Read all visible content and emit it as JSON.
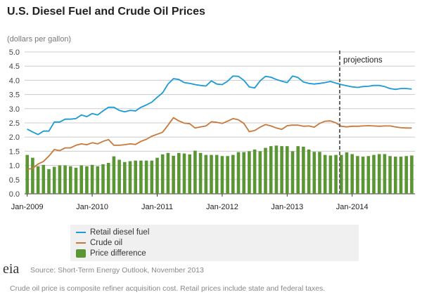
{
  "chart_data": {
    "type": "bar+line",
    "title": "U.S. Diesel Fuel and Crude Oil Prices",
    "ylabel": "(dollars per gallon)",
    "xlabel": "",
    "ylim": [
      0,
      5
    ],
    "yticks": [
      "0.0",
      "0.5",
      "1.0",
      "1.5",
      "2.0",
      "2.5",
      "3.0",
      "3.5",
      "4.0",
      "4.5",
      "5.0"
    ],
    "x_start": "Jan-2009",
    "x_end": "Dec-2014",
    "frequency": "monthly",
    "xticks": [
      "Jan-2009",
      "Jan-2010",
      "Jan-2011",
      "Jan-2012",
      "Jan-2013",
      "Jan-2014"
    ],
    "grid": true,
    "legend_position": "bottom",
    "annotation": {
      "label": "projections",
      "at": "Nov-2013"
    },
    "series": [
      {
        "name": "Retail diesel fuel",
        "type": "line",
        "color": "#1a9ad6",
        "values": [
          2.28,
          2.18,
          2.09,
          2.21,
          2.21,
          2.53,
          2.53,
          2.63,
          2.63,
          2.65,
          2.78,
          2.72,
          2.83,
          2.78,
          2.92,
          3.05,
          3.05,
          2.94,
          2.89,
          2.94,
          2.92,
          3.05,
          3.13,
          3.23,
          3.4,
          3.56,
          3.87,
          4.06,
          4.03,
          3.92,
          3.89,
          3.85,
          3.82,
          3.8,
          3.98,
          3.87,
          3.85,
          3.97,
          4.15,
          4.14,
          4.0,
          3.77,
          3.73,
          3.98,
          4.14,
          4.11,
          4.03,
          3.97,
          3.92,
          4.15,
          4.1,
          3.94,
          3.89,
          3.87,
          3.89,
          3.92,
          3.96,
          3.9,
          3.85,
          3.81,
          3.77,
          3.75,
          3.78,
          3.79,
          3.82,
          3.82,
          3.78,
          3.71,
          3.68,
          3.71,
          3.71,
          3.69
        ]
      },
      {
        "name": "Crude oil",
        "type": "line",
        "color": "#c8783a",
        "values": [
          0.87,
          0.89,
          1.05,
          1.14,
          1.33,
          1.56,
          1.52,
          1.62,
          1.62,
          1.71,
          1.76,
          1.73,
          1.8,
          1.76,
          1.85,
          1.91,
          1.71,
          1.71,
          1.73,
          1.76,
          1.74,
          1.85,
          1.92,
          2.03,
          2.1,
          2.17,
          2.42,
          2.68,
          2.57,
          2.49,
          2.47,
          2.32,
          2.36,
          2.39,
          2.54,
          2.52,
          2.48,
          2.56,
          2.65,
          2.61,
          2.48,
          2.19,
          2.23,
          2.35,
          2.44,
          2.39,
          2.32,
          2.27,
          2.4,
          2.42,
          2.42,
          2.38,
          2.39,
          2.35,
          2.48,
          2.56,
          2.57,
          2.5,
          2.38,
          2.36,
          2.38,
          2.38,
          2.39,
          2.4,
          2.39,
          2.38,
          2.39,
          2.39,
          2.36,
          2.33,
          2.32,
          2.32
        ]
      },
      {
        "name": "Price difference",
        "type": "bar",
        "color": "#5b9634",
        "values": [
          1.37,
          1.27,
          0.97,
          1.02,
          0.87,
          0.95,
          1.0,
          1.0,
          0.97,
          0.92,
          1.0,
          0.97,
          1.02,
          0.97,
          1.04,
          1.09,
          1.32,
          1.2,
          1.12,
          1.15,
          1.17,
          1.17,
          1.17,
          1.17,
          1.27,
          1.39,
          1.44,
          1.34,
          1.44,
          1.42,
          1.39,
          1.52,
          1.44,
          1.37,
          1.37,
          1.37,
          1.33,
          1.33,
          1.37,
          1.47,
          1.47,
          1.5,
          1.56,
          1.5,
          1.62,
          1.68,
          1.7,
          1.68,
          1.68,
          1.5,
          1.68,
          1.66,
          1.56,
          1.48,
          1.48,
          1.37,
          1.35,
          1.37,
          1.37,
          1.46,
          1.4,
          1.33,
          1.31,
          1.33,
          1.37,
          1.4,
          1.4,
          1.33,
          1.31,
          1.31,
          1.33,
          1.35
        ]
      }
    ]
  },
  "source": "Source: Short-Term Energy Outlook, November 2013",
  "note": "Crude oil price is composite refiner acquisition cost. Retail prices include state and federal taxes.",
  "logo_text": "eia"
}
